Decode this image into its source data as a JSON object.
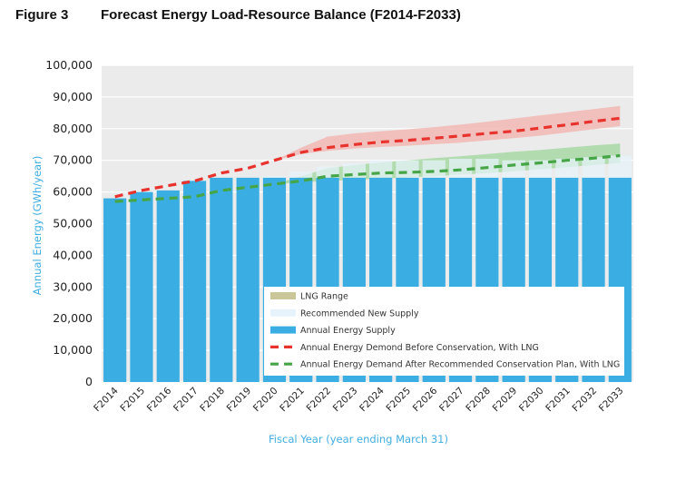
{
  "figure": {
    "label": "Figure 3",
    "title": "Forecast Energy Load-Resource Balance (F2014-F2033)"
  },
  "chart_data": {
    "type": "bar",
    "title": "Forecast Energy Load-Resource Balance (F2014-F2033)",
    "ylabel": "Annual Energy (GWh/year)",
    "xlabel": "Fiscal Year (year ending March 31)",
    "ylim": [
      0,
      100000
    ],
    "yticks": [
      0,
      10000,
      20000,
      30000,
      40000,
      50000,
      60000,
      70000,
      80000,
      90000,
      100000
    ],
    "ytick_labels": [
      "0",
      "10,000",
      "20,000",
      "30,000",
      "40,000",
      "50,000",
      "60,000",
      "70,000",
      "80,000",
      "90,000",
      "100,000"
    ],
    "grid": true,
    "legend_position": "lower-right",
    "categories": [
      "F2014",
      "F2015",
      "F2016",
      "F2017",
      "F2018",
      "F2019",
      "F2020",
      "F2021",
      "F2022",
      "F2023",
      "F2024",
      "F2025",
      "F2026",
      "F2027",
      "F2028",
      "F2029",
      "F2030",
      "F2031",
      "F2032",
      "F2033"
    ],
    "series": [
      {
        "name": "Annual Energy Supply",
        "kind": "bar",
        "color": "#3aaee2",
        "values": [
          58000,
          60000,
          60500,
          63500,
          64500,
          64500,
          64500,
          64500,
          64500,
          64500,
          64500,
          64500,
          64500,
          64500,
          64500,
          64500,
          64500,
          64500,
          64500,
          64500
        ]
      },
      {
        "name": "Recommended New Supply",
        "kind": "stacked-bar",
        "color": "#e6f3fa",
        "values": [
          0,
          0,
          0,
          0,
          0,
          0,
          500,
          2000,
          3500,
          4500,
          5500,
          5500,
          5500,
          6000,
          6000,
          5500,
          5500,
          6000,
          6500,
          7000
        ]
      },
      {
        "name": "Annual Energy Demond Before Conservation, With LNG",
        "kind": "dashed-line",
        "color": "#e8322e",
        "values": [
          58500,
          60500,
          62000,
          63500,
          66000,
          67500,
          70000,
          72500,
          74000,
          75000,
          75800,
          76300,
          77000,
          77700,
          78500,
          79200,
          80200,
          81200,
          82300,
          83300
        ]
      },
      {
        "name": "Annual Energy Demand After Recommended Conservation Plan, With LNG",
        "kind": "dashed-line",
        "color": "#46a546",
        "values": [
          57000,
          57500,
          58000,
          58500,
          60500,
          61500,
          62500,
          63500,
          65000,
          65500,
          66000,
          66200,
          66500,
          67000,
          67700,
          68500,
          69200,
          70000,
          70700,
          71500
        ]
      },
      {
        "name": "LNG Range",
        "kind": "band",
        "colors": [
          "#f2b8b4",
          "#a8d8a6"
        ],
        "bands": [
          {
            "low": [
              58500,
              60500,
              62000,
              63500,
              66000,
              67500,
              70000,
              72000,
              73000,
              73700,
              74200,
              74600,
              75100,
              75600,
              76300,
              77000,
              77800,
              78800,
              79800,
              80800
            ],
            "high": [
              58500,
              60500,
              62000,
              63500,
              66000,
              67500,
              70000,
              74000,
              77500,
              78500,
              79200,
              79800,
              80500,
              81300,
              82200,
              83200,
              84200,
              85200,
              86200,
              87200
            ]
          },
          {
            "low": [
              57000,
              57500,
              58000,
              58500,
              60500,
              61500,
              62500,
              63000,
              63500,
              63800,
              64200,
              64600,
              65000,
              65500,
              66000,
              66500,
              67200,
              67800,
              68500,
              69200
            ],
            "high": [
              57000,
              57500,
              58000,
              58500,
              60500,
              61500,
              62500,
              65000,
              67500,
              68500,
              69300,
              70000,
              70700,
              71300,
              72000,
              72700,
              73300,
              74000,
              74700,
              75300
            ]
          }
        ]
      }
    ],
    "legend": [
      {
        "label": "LNG Range",
        "swatch": "band"
      },
      {
        "label": "Recommended New Supply",
        "swatch": "light"
      },
      {
        "label": "Annual Energy Supply",
        "swatch": "bar"
      },
      {
        "label": "Annual Energy Demond Before Conservation, With LNG",
        "swatch": "red-dash"
      },
      {
        "label": "Annual Energy Demand After Recommended Conservation Plan, With LNG",
        "swatch": "green-dash"
      }
    ]
  }
}
